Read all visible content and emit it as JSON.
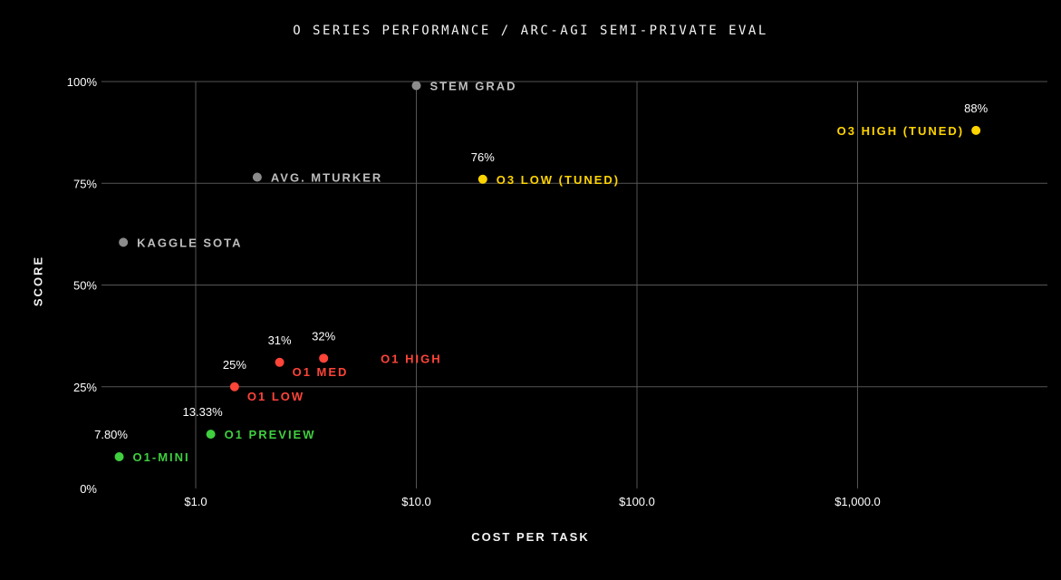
{
  "chart_data": {
    "type": "scatter",
    "title": "O SERIES PERFORMANCE / ARC-AGI SEMI-PRIVATE EVAL",
    "xlabel": "COST PER TASK",
    "ylabel": "SCORE",
    "x_scale": "log",
    "xlim": [
      0.42,
      8500
    ],
    "ylim": [
      0,
      100
    ],
    "x_ticks": [
      {
        "value": 1,
        "label": "$1.0"
      },
      {
        "value": 10,
        "label": "$10.0"
      },
      {
        "value": 100,
        "label": "$100.0"
      },
      {
        "value": 1000,
        "label": "$1,000.0"
      }
    ],
    "y_ticks": [
      {
        "value": 0,
        "label": "0%"
      },
      {
        "value": 25,
        "label": "25%"
      },
      {
        "value": 50,
        "label": "50%"
      },
      {
        "value": 75,
        "label": "75%"
      },
      {
        "value": 100,
        "label": "100%"
      }
    ],
    "grid": true,
    "colors": {
      "gray": "#8c8c8c",
      "gray_text": "#bdbdbd",
      "red": "#ff4438",
      "green": "#3fcf3f",
      "yellow": "#ffd400",
      "grid": "#555555",
      "background": "#000000"
    },
    "points": [
      {
        "name": "STEM GRAD",
        "x": 10,
        "y": 99,
        "color": "gray",
        "value_label": "",
        "label_pos": "right"
      },
      {
        "name": "AVG. MTURKER",
        "x": 1.9,
        "y": 76.5,
        "color": "gray",
        "value_label": "",
        "label_pos": "right"
      },
      {
        "name": "KAGGLE SOTA",
        "x": 0.47,
        "y": 60.5,
        "color": "gray",
        "value_label": "",
        "label_pos": "right"
      },
      {
        "name": "O3 HIGH (TUNED)",
        "x": 3440,
        "y": 88,
        "color": "yellow",
        "value_label": "88%",
        "label_pos": "left"
      },
      {
        "name": "O3 LOW (TUNED)",
        "x": 20,
        "y": 76,
        "color": "yellow",
        "value_label": "76%",
        "label_pos": "right"
      },
      {
        "name": "O1 HIGH",
        "x": 3.8,
        "y": 32,
        "color": "red",
        "value_label": "32%",
        "label_pos": "far-right"
      },
      {
        "name": "O1 MED",
        "x": 2.4,
        "y": 31,
        "color": "red",
        "value_label": "31%",
        "label_pos": "below-right"
      },
      {
        "name": "O1 LOW",
        "x": 1.5,
        "y": 25,
        "color": "red",
        "value_label": "25%",
        "label_pos": "below-right"
      },
      {
        "name": "O1 PREVIEW",
        "x": 1.17,
        "y": 13.33,
        "color": "green",
        "value_label": "13.33%",
        "label_pos": "right"
      },
      {
        "name": "O1-MINI",
        "x": 0.45,
        "y": 7.8,
        "color": "green",
        "value_label": "7.80%",
        "label_pos": "right"
      }
    ]
  }
}
